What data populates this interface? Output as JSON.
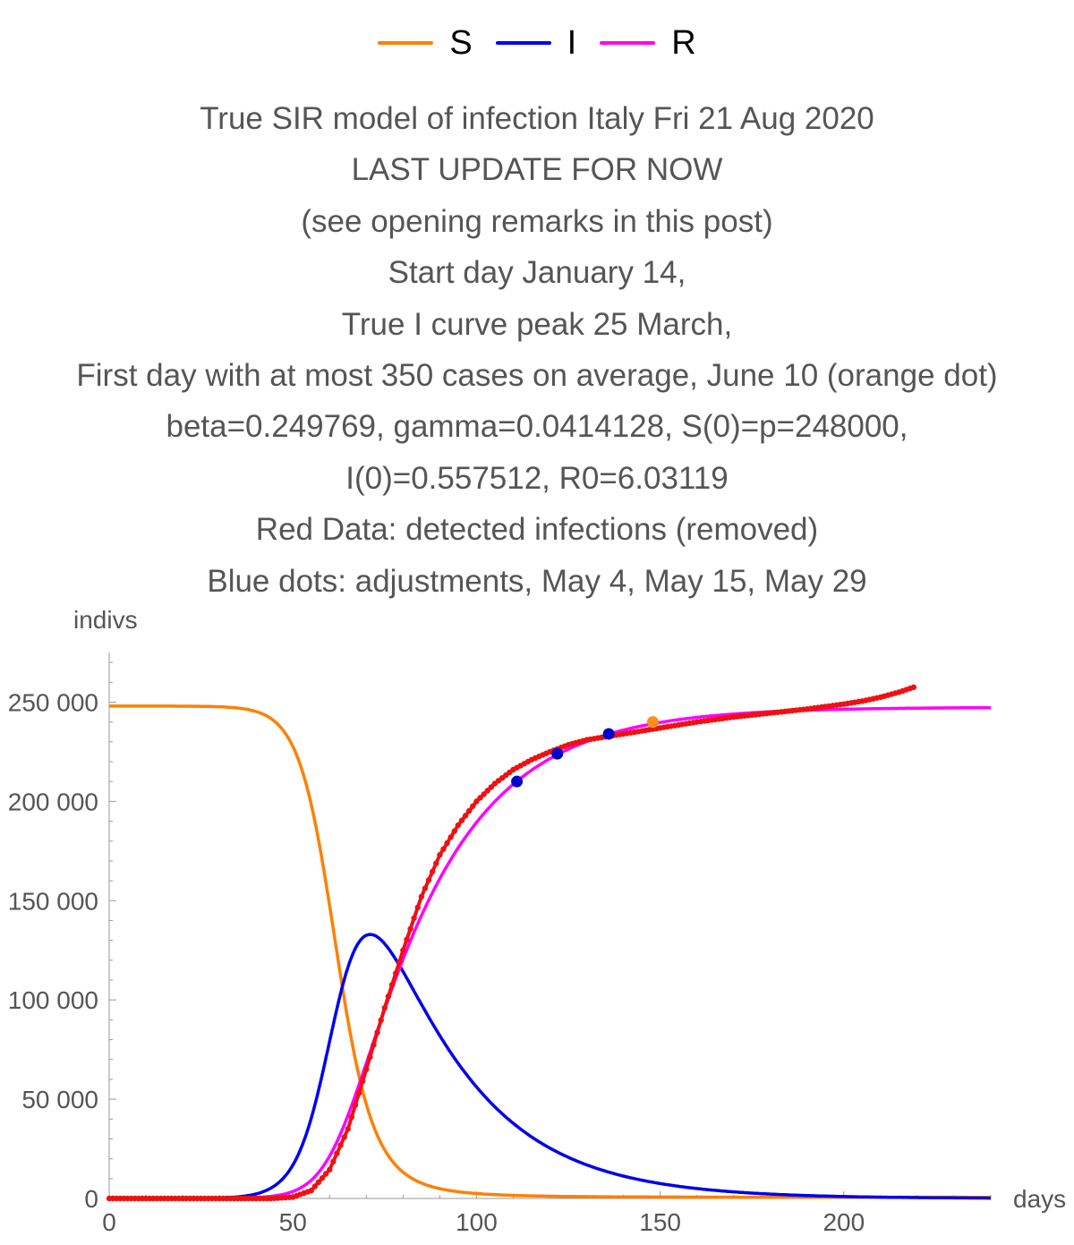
{
  "legend": [
    {
      "label": "S",
      "color": "#ff8000"
    },
    {
      "label": "I",
      "color": "#0000ee"
    },
    {
      "label": "R",
      "color": "#ff00ff"
    }
  ],
  "title_lines": [
    "True SIR model of infection Italy Fri 21 Aug 2020",
    "LAST UPDATE FOR NOW",
    "(see opening remarks in this post)",
    "Start day January 14,",
    "True I curve peak 25 March,",
    "First day with at most 350 cases on average, June 10 (orange dot)",
    "beta=0.249769, gamma=0.0414128, S(0)=p=248000,",
    "I(0)=0.557512, R0=6.03119",
    "Red Data: detected infections (removed)",
    "Blue dots: adjustments, May 4, May 15, May 29"
  ],
  "chart_data": {
    "type": "line",
    "ylabel": "indivs",
    "xlabel": "days",
    "xlim": [
      0,
      240
    ],
    "ylim": [
      0,
      275000
    ],
    "x_ticks": [
      0,
      50,
      100,
      150,
      200
    ],
    "x_tick_labels": [
      "0",
      "50",
      "100",
      "150",
      "200"
    ],
    "y_ticks": [
      0,
      50000,
      100000,
      150000,
      200000,
      250000
    ],
    "y_tick_labels": [
      "0",
      "50 000",
      "100 000",
      "150 000",
      "200 000",
      "250 000"
    ],
    "model": {
      "beta": 0.249769,
      "gamma": 0.0414128,
      "S0": 248000,
      "I0": 0.557512,
      "R0_value": 6.03119,
      "days": 240
    },
    "series": [
      {
        "name": "S",
        "color": "#ff8000"
      },
      {
        "name": "I",
        "color": "#0000ee"
      },
      {
        "name": "R",
        "color": "#ff00ff"
      }
    ],
    "detected_infections": {
      "color": "#ee1111",
      "x": [
        45,
        50,
        55,
        60,
        65,
        70,
        75,
        80,
        85,
        90,
        95,
        100,
        105,
        110,
        115,
        120,
        125,
        130,
        135,
        140,
        145,
        150,
        160,
        170,
        180,
        190,
        200,
        205,
        210,
        215,
        219
      ],
      "y": [
        100,
        700,
        4000,
        14500,
        35000,
        65000,
        96000,
        125000,
        152000,
        173000,
        188000,
        200000,
        209000,
        216000,
        221000,
        225000,
        228500,
        231000,
        232500,
        234000,
        235500,
        237000,
        240000,
        242500,
        244500,
        246500,
        249000,
        250500,
        252500,
        255000,
        257500
      ]
    },
    "adjustment_dots": {
      "color": "#0000cc",
      "x": [
        111,
        122,
        136
      ],
      "y": [
        210000,
        224000,
        234000
      ]
    },
    "highlight_dot": {
      "color": "#ff8c1a",
      "x": 148,
      "y": 240000
    }
  }
}
